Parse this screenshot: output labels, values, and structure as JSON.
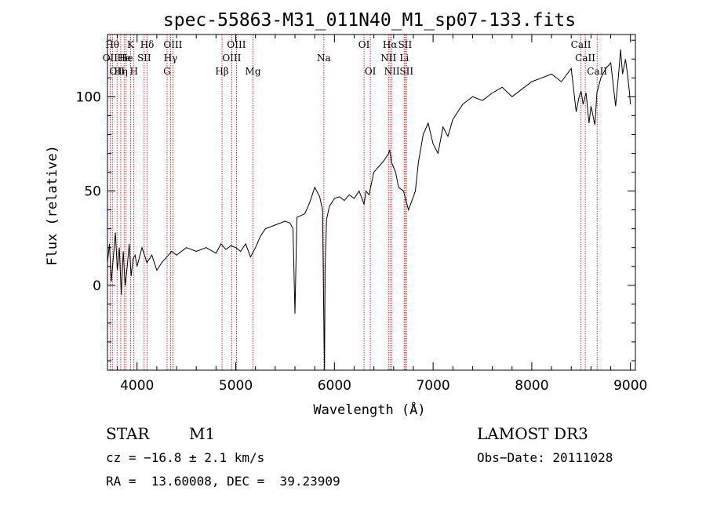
{
  "chart_data": {
    "type": "line",
    "title": "spec-55863-M31_011N40_M1_sp07-133.fits",
    "xlabel": "Wavelength (Å)",
    "ylabel": "Flux (relative)",
    "xlim": [
      3700,
      9050
    ],
    "ylim": [
      -45,
      133
    ],
    "xticks": [
      4000,
      5000,
      6000,
      7000,
      8000,
      9000
    ],
    "yticks": [
      0,
      50,
      100
    ],
    "series": [
      {
        "name": "spectrum",
        "x": [
          3700,
          3720,
          3740,
          3760,
          3780,
          3800,
          3820,
          3840,
          3860,
          3880,
          3900,
          3920,
          3940,
          3960,
          3980,
          4000,
          4050,
          4100,
          4150,
          4200,
          4250,
          4300,
          4350,
          4400,
          4500,
          4600,
          4700,
          4800,
          4850,
          4900,
          4950,
          5000,
          5050,
          5100,
          5150,
          5200,
          5250,
          5300,
          5400,
          5500,
          5550,
          5580,
          5600,
          5620,
          5700,
          5750,
          5800,
          5850,
          5880,
          5895,
          5900,
          5905,
          5920,
          5950,
          6000,
          6050,
          6100,
          6150,
          6200,
          6250,
          6300,
          6320,
          6350,
          6400,
          6450,
          6500,
          6550,
          6560,
          6580,
          6620,
          6650,
          6700,
          6750,
          6800,
          6820,
          6850,
          6900,
          6950,
          7000,
          7050,
          7100,
          7150,
          7200,
          7250,
          7300,
          7400,
          7500,
          7600,
          7700,
          7800,
          7900,
          8000,
          8100,
          8200,
          8300,
          8400,
          8450,
          8480,
          8500,
          8520,
          8550,
          8580,
          8600,
          8640,
          8660,
          8700,
          8750,
          8800,
          8850,
          8880,
          8900,
          8920,
          8950,
          8970,
          8990,
          9000
        ],
        "values": [
          12,
          22,
          2,
          15,
          28,
          8,
          20,
          -5,
          18,
          0,
          10,
          22,
          5,
          14,
          16,
          10,
          20,
          12,
          16,
          8,
          12,
          15,
          18,
          16,
          20,
          18,
          20,
          17,
          22,
          19,
          21,
          20,
          18,
          22,
          15,
          20,
          26,
          30,
          32,
          34,
          33,
          30,
          -15,
          36,
          38,
          44,
          52,
          47,
          40,
          -30,
          -50,
          8,
          35,
          42,
          46,
          47,
          45,
          48,
          46,
          50,
          43,
          50,
          48,
          60,
          63,
          66,
          70,
          72,
          65,
          60,
          52,
          50,
          40,
          47,
          50,
          65,
          80,
          86,
          75,
          70,
          84,
          79,
          88,
          92,
          96,
          100,
          98,
          102,
          105,
          100,
          104,
          108,
          110,
          112,
          108,
          115,
          92,
          100,
          103,
          96,
          102,
          86,
          95,
          85,
          102,
          110,
          115,
          118,
          95,
          112,
          125,
          112,
          120,
          112,
          102,
          96
        ]
      }
    ],
    "lines": [
      {
        "x": 3727,
        "label": "OII",
        "row": 2
      },
      {
        "x": 3750,
        "label": "Hθ",
        "row": 1
      },
      {
        "x": 3797,
        "label": "OII",
        "row": 3
      },
      {
        "x": 3835,
        "label": "Hη",
        "row": 3
      },
      {
        "x": 3869,
        "label": "He",
        "row": 2
      },
      {
        "x": 3889,
        "label": "He",
        "row": 2
      },
      {
        "x": 3934,
        "label": "K",
        "row": 1
      },
      {
        "x": 3968,
        "label": "H",
        "row": 3
      },
      {
        "x": 4072,
        "label": "SII",
        "row": 2
      },
      {
        "x": 4102,
        "label": "Hδ",
        "row": 1
      },
      {
        "x": 4304,
        "label": "G",
        "row": 3
      },
      {
        "x": 4340,
        "label": "Hγ",
        "row": 2
      },
      {
        "x": 4363,
        "label": "OIII",
        "row": 1
      },
      {
        "x": 4861,
        "label": "Hβ",
        "row": 3
      },
      {
        "x": 4959,
        "label": "OIII",
        "row": 2
      },
      {
        "x": 5007,
        "label": "OIII",
        "row": 1
      },
      {
        "x": 5175,
        "label": "Mg",
        "row": 3
      },
      {
        "x": 5893,
        "label": "Na",
        "row": 2
      },
      {
        "x": 6300,
        "label": "OI",
        "row": 1
      },
      {
        "x": 6364,
        "label": "OI",
        "row": 3
      },
      {
        "x": 6548,
        "label": "NII",
        "row": 2
      },
      {
        "x": 6563,
        "label": "Hα",
        "row": 1
      },
      {
        "x": 6583,
        "label": "NII",
        "row": 3
      },
      {
        "x": 6707,
        "label": "Li",
        "row": 2
      },
      {
        "x": 6716,
        "label": "SII",
        "row": 1
      },
      {
        "x": 6731,
        "label": "SII",
        "row": 3
      },
      {
        "x": 8498,
        "label": "CaII",
        "row": 1
      },
      {
        "x": 8542,
        "label": "CaII",
        "row": 2
      },
      {
        "x": 8662,
        "label": "CaII",
        "row": 3
      }
    ]
  },
  "info": {
    "class": "STAR",
    "subclass": "M1",
    "survey": "LAMOST DR3",
    "cz": "cz = −16.8 ± 2.1 km/s",
    "obs_date": "Obs−Date: 20111028",
    "radec": "RA =  13.60008, DEC =  39.23909"
  },
  "colors": {
    "line_marker": "#cc0000",
    "axes": "#000000",
    "spectrum": "#000000"
  }
}
